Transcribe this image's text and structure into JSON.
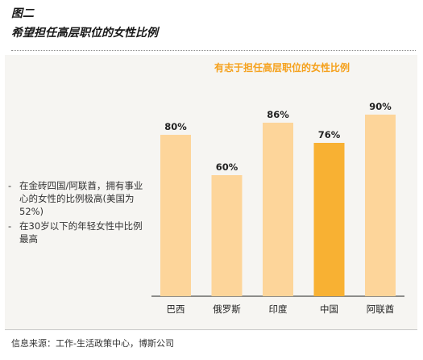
{
  "figure": {
    "label": "图二",
    "title": "希望担任高层职位的女性比例"
  },
  "notes": [
    "在金砖四国/阿联酋，拥有事业心的女性的比例极高(美国为52%)",
    "在30岁以下的年轻女性中比例最高"
  ],
  "source": "信息来源：工作-生活政策中心，博斯公司",
  "colors": {
    "bar": "#fdd59a",
    "highlight": "#f8b133",
    "chart_title": "#f5a11c",
    "panel": "#f6f5f2"
  },
  "chart_data": {
    "type": "bar",
    "title": "有志于担任高层职位的女性比例",
    "categories": [
      "巴西",
      "俄罗斯",
      "印度",
      "中国",
      "阿联酋"
    ],
    "values": [
      80,
      60,
      86,
      76,
      90
    ],
    "value_labels": [
      "80%",
      "60%",
      "86%",
      "76%",
      "90%"
    ],
    "highlight_category": "中国",
    "ylim": [
      0,
      100
    ],
    "grid": false,
    "xlabel": "",
    "ylabel": ""
  }
}
